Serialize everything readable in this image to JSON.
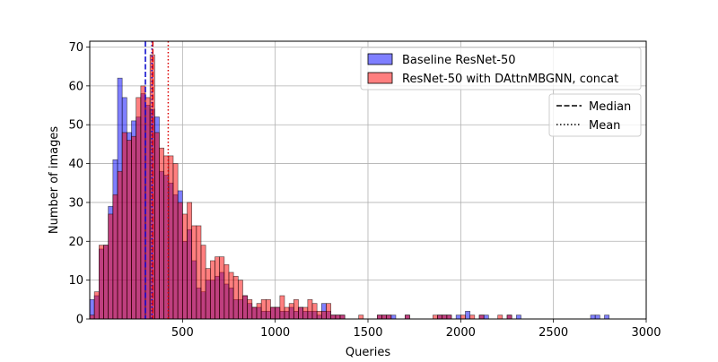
{
  "chart_data": {
    "type": "histogram",
    "xlabel": "Queries",
    "ylabel": "Number of images",
    "xlim": [
      0,
      3000
    ],
    "ylim": [
      0,
      71.5
    ],
    "xticks": [
      500,
      1000,
      1500,
      2000,
      2500,
      3000
    ],
    "yticks": [
      0,
      10,
      20,
      30,
      40,
      50,
      60,
      70
    ],
    "grid": true,
    "bin_width": 25,
    "series": [
      {
        "name": "Baseline ResNet-50",
        "color": "#0000ff",
        "alpha": 0.5,
        "median": 300,
        "mean": 335,
        "bins": [
          [
            0,
            5
          ],
          [
            25,
            6
          ],
          [
            50,
            18
          ],
          [
            75,
            19
          ],
          [
            100,
            29
          ],
          [
            125,
            41
          ],
          [
            150,
            62
          ],
          [
            175,
            57
          ],
          [
            200,
            48
          ],
          [
            225,
            51
          ],
          [
            250,
            52
          ],
          [
            275,
            58
          ],
          [
            300,
            55
          ],
          [
            325,
            54
          ],
          [
            350,
            52
          ],
          [
            375,
            38
          ],
          [
            400,
            37
          ],
          [
            425,
            35
          ],
          [
            450,
            32
          ],
          [
            475,
            33
          ],
          [
            500,
            20
          ],
          [
            525,
            23
          ],
          [
            550,
            15
          ],
          [
            575,
            8
          ],
          [
            600,
            7
          ],
          [
            625,
            10
          ],
          [
            650,
            10
          ],
          [
            675,
            11
          ],
          [
            700,
            12
          ],
          [
            725,
            9
          ],
          [
            750,
            8
          ],
          [
            775,
            5
          ],
          [
            800,
            5
          ],
          [
            825,
            6
          ],
          [
            850,
            4
          ],
          [
            875,
            3
          ],
          [
            900,
            3
          ],
          [
            925,
            2
          ],
          [
            950,
            2
          ],
          [
            975,
            3
          ],
          [
            1000,
            3
          ],
          [
            1025,
            2
          ],
          [
            1050,
            2
          ],
          [
            1075,
            3
          ],
          [
            1100,
            2
          ],
          [
            1125,
            3
          ],
          [
            1150,
            2
          ],
          [
            1175,
            2
          ],
          [
            1200,
            2
          ],
          [
            1225,
            1
          ],
          [
            1250,
            4
          ],
          [
            1275,
            2
          ],
          [
            1300,
            1
          ],
          [
            1325,
            1
          ],
          [
            1350,
            1
          ],
          [
            1550,
            1
          ],
          [
            1575,
            1
          ],
          [
            1600,
            1
          ],
          [
            1625,
            1
          ],
          [
            1700,
            1
          ],
          [
            1875,
            1
          ],
          [
            1900,
            1
          ],
          [
            1925,
            1
          ],
          [
            1975,
            1
          ],
          [
            2025,
            2
          ],
          [
            2100,
            1
          ],
          [
            2125,
            1
          ],
          [
            2250,
            1
          ],
          [
            2300,
            1
          ],
          [
            2700,
            1
          ],
          [
            2725,
            1
          ],
          [
            2775,
            1
          ]
        ]
      },
      {
        "name": "ResNet-50 with DAttnMBGNN, concat",
        "color": "#ff0000",
        "alpha": 0.5,
        "median": 340,
        "mean": 423,
        "bins": [
          [
            0,
            1
          ],
          [
            25,
            7
          ],
          [
            50,
            19
          ],
          [
            75,
            19
          ],
          [
            100,
            27
          ],
          [
            125,
            32
          ],
          [
            150,
            38
          ],
          [
            175,
            48
          ],
          [
            200,
            46
          ],
          [
            225,
            47
          ],
          [
            250,
            57
          ],
          [
            275,
            60
          ],
          [
            300,
            57
          ],
          [
            325,
            68
          ],
          [
            350,
            48
          ],
          [
            375,
            44
          ],
          [
            400,
            42
          ],
          [
            425,
            42
          ],
          [
            450,
            40
          ],
          [
            475,
            30
          ],
          [
            500,
            27
          ],
          [
            525,
            30
          ],
          [
            550,
            24
          ],
          [
            575,
            24
          ],
          [
            600,
            19
          ],
          [
            625,
            13
          ],
          [
            650,
            15
          ],
          [
            675,
            16
          ],
          [
            700,
            16
          ],
          [
            725,
            14
          ],
          [
            750,
            12
          ],
          [
            775,
            11
          ],
          [
            800,
            10
          ],
          [
            825,
            6
          ],
          [
            850,
            5
          ],
          [
            875,
            3
          ],
          [
            900,
            4
          ],
          [
            925,
            5
          ],
          [
            950,
            5
          ],
          [
            975,
            3
          ],
          [
            1000,
            3
          ],
          [
            1025,
            6
          ],
          [
            1050,
            3
          ],
          [
            1075,
            4
          ],
          [
            1100,
            5
          ],
          [
            1125,
            3
          ],
          [
            1150,
            3
          ],
          [
            1175,
            5
          ],
          [
            1200,
            4
          ],
          [
            1225,
            2
          ],
          [
            1250,
            2
          ],
          [
            1275,
            4
          ],
          [
            1300,
            1
          ],
          [
            1325,
            1
          ],
          [
            1350,
            1
          ],
          [
            1450,
            1
          ],
          [
            1550,
            1
          ],
          [
            1575,
            1
          ],
          [
            1600,
            1
          ],
          [
            1700,
            1
          ],
          [
            1850,
            1
          ],
          [
            1875,
            1
          ],
          [
            1900,
            1
          ],
          [
            1925,
            1
          ],
          [
            2000,
            1
          ],
          [
            2050,
            1
          ],
          [
            2100,
            1
          ],
          [
            2200,
            1
          ],
          [
            2250,
            1
          ]
        ]
      }
    ],
    "legend_series": {
      "position": "top-right",
      "entries": [
        "Baseline ResNet-50",
        "ResNet-50 with DAttnMBGNN, concat"
      ]
    },
    "legend_lines": {
      "position": "upper-right-below",
      "entries": [
        {
          "label": "Median",
          "style": "dashed"
        },
        {
          "label": "Mean",
          "style": "dotted"
        }
      ]
    }
  }
}
